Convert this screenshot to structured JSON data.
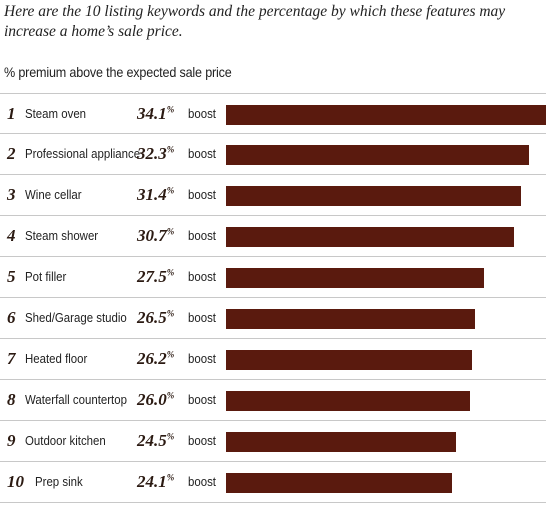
{
  "intro": "Here are the 10 listing keywords and the percentage by which these features may increase a home’s sale price.",
  "chart_data": {
    "type": "bar",
    "orientation": "horizontal",
    "subtitle": "% premium above the expected sale price",
    "value_suffix": "boost",
    "percent_sign": "%",
    "bar_color": "#5a1a0e",
    "xlim": [
      0,
      34.1
    ],
    "categories": [
      "Steam oven",
      "Professional appliance",
      "Wine cellar",
      "Steam shower",
      "Pot filler",
      "Shed/Garage studio",
      "Heated floor",
      "Waterfall countertop",
      "Outdoor kitchen",
      "Prep sink"
    ],
    "ranks": [
      "1",
      "2",
      "3",
      "4",
      "5",
      "6",
      "7",
      "8",
      "9",
      "10"
    ],
    "values": [
      34.1,
      32.3,
      31.4,
      30.7,
      27.5,
      26.5,
      26.2,
      26.0,
      24.5,
      24.1
    ],
    "value_labels": [
      "34.1",
      "32.3",
      "31.4",
      "30.7",
      "27.5",
      "26.5",
      "26.2",
      "26.0",
      "24.5",
      "24.1"
    ]
  }
}
